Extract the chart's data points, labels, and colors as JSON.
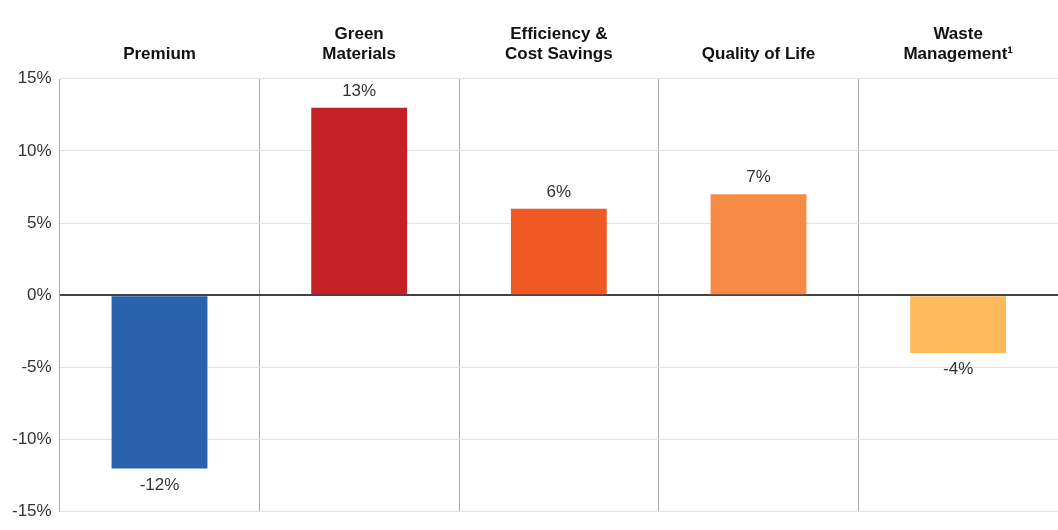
{
  "chart_data": {
    "type": "bar",
    "categories": [
      "Premium",
      "Green\nMaterials",
      "Efficiency &\nCost Savings",
      "Quality of Life",
      "Waste\nManagement¹"
    ],
    "values": [
      -12,
      13,
      6,
      7,
      -4
    ],
    "colors": [
      "#2862ad",
      "#c42026",
      "#ef5a24",
      "#f58b45",
      "#fdb95a"
    ],
    "value_labels": [
      "-12%",
      "13%",
      "6%",
      "7%",
      "-4%"
    ],
    "ylim": [
      -15,
      15
    ],
    "yticks": [
      {
        "value": -15,
        "label": "-15%"
      },
      {
        "value": -10,
        "label": "-10%"
      },
      {
        "value": -5,
        "label": "-5%"
      },
      {
        "value": 0,
        "label": "0%"
      },
      {
        "value": 5,
        "label": "5%"
      },
      {
        "value": 10,
        "label": "10%"
      },
      {
        "value": 15,
        "label": "15%"
      }
    ],
    "grid": true
  }
}
